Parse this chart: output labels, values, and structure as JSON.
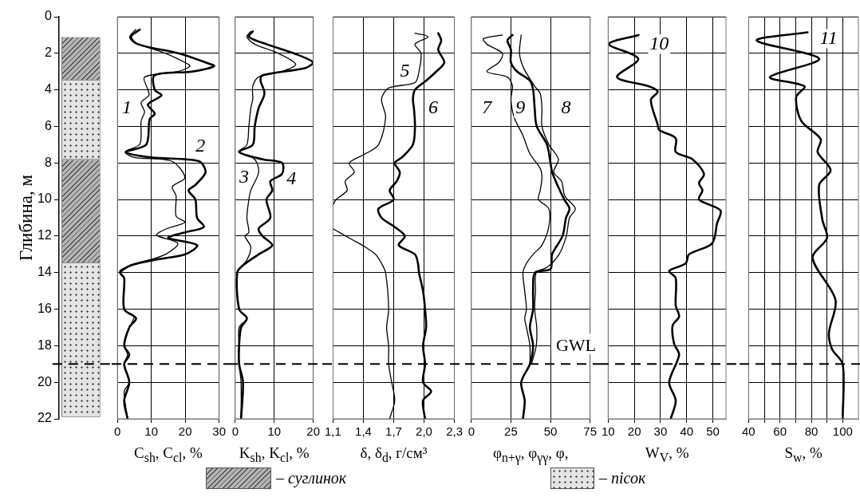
{
  "chart_data": [
    {
      "type": "bar",
      "ylabel": "Глибина, м",
      "ylim": [
        22,
        0
      ],
      "yticks": [
        0,
        2,
        4,
        6,
        8,
        10,
        12,
        14,
        16,
        18,
        20,
        22
      ],
      "tick_labels": "y",
      "legend": "bottom",
      "categories": [
        null
      ],
      "series": [
        {
          "name": "– суглинок",
          "color": "#b4b4b4",
          "base": [
            1.1
          ],
          "values": [
            2.4
          ]
        },
        {
          "name": "– пісок",
          "color": "#e4e4e4",
          "base": [
            3.5
          ],
          "values": [
            4.3
          ]
        },
        {
          "color": "#b4b4b4",
          "base": [
            7.8
          ],
          "values": [
            5.7
          ]
        },
        {
          "color": "#e4e4e4",
          "base": [
            13.5
          ],
          "values": [
            8.4
          ]
        }
      ],
      "ref_lines": [
        {
          "axis": "y",
          "value": 19,
          "line_style": "dashed",
          "color": "#000000"
        }
      ]
    },
    {
      "type": "line",
      "xlabel": "C$_{sh}$, C$_{cl}$, %",
      "xlim": [
        0,
        30
      ],
      "xticks": [
        0,
        10,
        20,
        30
      ],
      "ylim": [
        22,
        0
      ],
      "yticks": [
        0,
        2,
        4,
        6,
        8,
        10,
        12,
        14,
        16,
        18,
        20,
        22
      ],
      "tick_labels": "x",
      "grid": true,
      "series": [
        {
          "color": "#000000",
          "x": [
            5.4,
            3.6,
            4.9,
            14.2,
            19.9,
            21.4,
            17.8,
            8.0,
            9.0,
            9.3,
            7.0,
            8.0,
            7.0,
            7.0,
            6.5,
            2.3,
            5.0,
            16,
            19.9,
            16.2,
            17.3,
            17.3,
            19.9,
            14.5,
            11.6,
            17.8,
            14.2,
            6.0,
            0.7,
            2.0,
            2.0,
            4.9,
            3.5,
            2.0,
            3.0,
            2.0,
            3.5,
            2.0,
            3.0
          ],
          "values": [
            0.7,
            1.1,
            1.4,
            2.0,
            2.5,
            2.7,
            3.0,
            3.3,
            4.0,
            4.3,
            4.7,
            5.2,
            5.7,
            6.5,
            7.0,
            7.4,
            7.7,
            7.9,
            8.8,
            9.3,
            9.8,
            10.9,
            11.25,
            11.6,
            11.95,
            12.4,
            13.0,
            13.5,
            13.9,
            14.3,
            16.0,
            16.4,
            17.0,
            18.0,
            18.5,
            19.0,
            20.0,
            20.5,
            22.0
          ]
        },
        {
          "color": "#000000",
          "x": [
            6.6,
            4,
            6,
            18,
            26,
            28.5,
            22,
            11,
            11,
            13,
            9,
            11,
            9.5,
            8.5,
            2.5,
            10,
            24,
            26,
            23,
            21,
            23,
            23.5,
            25.5,
            20,
            15,
            23.5,
            20,
            11,
            4,
            0.8,
            2,
            2,
            5.5,
            3.5,
            2,
            3.5,
            2,
            3.5,
            2,
            3
          ],
          "values": [
            0.7,
            1.1,
            1.5,
            2.0,
            2.5,
            2.7,
            3.0,
            3.2,
            4.0,
            4.3,
            4.8,
            5.3,
            5.6,
            7.0,
            7.4,
            7.7,
            7.9,
            8.5,
            9.2,
            9.5,
            10.0,
            11.0,
            11.5,
            11.8,
            12.1,
            12.5,
            13.0,
            13.3,
            13.6,
            14.0,
            14.3,
            16.0,
            16.5,
            17.0,
            18.0,
            18.5,
            19.0,
            20.0,
            21.0,
            22.0
          ]
        }
      ],
      "annotations": [
        {
          "text": "1",
          "x": 2.8,
          "y": 5.0
        },
        {
          "text": "2",
          "x": 24.5,
          "y": 7.1
        }
      ],
      "ref_lines": [
        {
          "axis": "y",
          "value": 19,
          "line_style": "dashed",
          "color": "#000000"
        }
      ]
    },
    {
      "type": "line",
      "xlabel": "K$_{sh}$, K$_{cl}$, %",
      "xlim": [
        0,
        20
      ],
      "xticks": [
        0,
        10,
        20
      ],
      "ylim": [
        22,
        0
      ],
      "yticks": [
        0,
        2,
        4,
        6,
        8,
        10,
        12,
        14,
        16,
        18,
        20,
        22
      ],
      "tick_labels": "x",
      "grid": true,
      "series": [
        {
          "color": "#000000",
          "x": [
            4,
            3,
            5,
            11,
            15.5,
            12,
            6,
            4.5,
            4.5,
            4,
            3.5,
            3,
            1,
            5,
            6,
            4,
            3.5,
            3,
            3.5,
            2.5,
            4,
            3,
            0.5,
            1,
            3,
            1,
            1,
            1,
            1.5,
            1.5
          ],
          "values": [
            0.8,
            1.1,
            1.5,
            2.0,
            2.6,
            3.0,
            3.3,
            3.8,
            4.5,
            5.0,
            6.0,
            7.0,
            7.4,
            7.8,
            8.5,
            9.5,
            10.0,
            11.0,
            11.8,
            12.0,
            12.6,
            13.3,
            14.0,
            16.0,
            16.5,
            17.0,
            18.0,
            19.0,
            20.0,
            22.0
          ]
        },
        {
          "color": "#000000",
          "x": [
            4.5,
            3.5,
            8,
            15,
            20,
            18,
            7,
            6.5,
            7.5,
            6,
            5,
            4.5,
            1,
            7,
            12,
            12,
            9,
            9.5,
            8,
            9,
            6,
            7,
            9.5,
            6,
            2,
            0.5,
            1,
            3,
            1.5,
            1,
            1,
            2,
            1.5
          ],
          "values": [
            0.8,
            1.1,
            1.5,
            2.0,
            2.5,
            2.8,
            3.2,
            3.5,
            4.2,
            5.0,
            6.0,
            7.0,
            7.4,
            7.8,
            8.0,
            8.6,
            9.0,
            9.5,
            10.0,
            11.0,
            11.6,
            12.0,
            12.5,
            13.0,
            13.6,
            14.0,
            16.0,
            16.5,
            17.0,
            18.0,
            19.0,
            20.0,
            22.0
          ]
        }
      ],
      "annotations": [
        {
          "text": "3",
          "x": 2.3,
          "y": 8.8
        },
        {
          "text": "4",
          "x": 14.4,
          "y": 8.9
        }
      ],
      "ref_lines": [
        {
          "axis": "y",
          "value": 19,
          "line_style": "dashed",
          "color": "#000000"
        }
      ]
    },
    {
      "type": "line",
      "xlabel": "δ, δ$_{d}$, г/см³",
      "xlim": [
        1.1,
        2.3
      ],
      "xticks": [
        {
          "value": 1.1,
          "label": "1,1"
        },
        {
          "value": 1.4,
          "label": "1,4"
        },
        {
          "value": 1.7,
          "label": "1,7"
        },
        {
          "value": 2.0,
          "label": "2,0"
        },
        {
          "value": 2.3,
          "label": "2,3"
        }
      ],
      "ylim": [
        22,
        0
      ],
      "yticks": [
        0,
        2,
        4,
        6,
        8,
        10,
        12,
        14,
        16,
        18,
        20,
        22
      ],
      "tick_labels": "x",
      "grid": true,
      "series": [
        {
          "color": "#000000",
          "x": [
            1.91,
            2.04,
            1.91,
            1.97,
            1.95,
            1.91,
            1.65,
            1.58,
            1.62,
            1.55,
            1.42,
            1.26,
            1.31,
            1.22,
            1.24,
            1.13,
            1.1,
            null,
            1.1,
            1.29,
            1.39,
            1.52,
            1.58,
            1.62,
            1.65,
            1.63,
            1.65,
            1.65,
            1.68,
            1.71,
            1.66
          ],
          "values": [
            0.9,
            1.1,
            1.5,
            2.0,
            3.0,
            3.6,
            3.9,
            4.5,
            5.5,
            7.0,
            7.5,
            8.0,
            8.5,
            9.0,
            9.5,
            10.0,
            10.3,
            null,
            11.6,
            12.2,
            12.5,
            13.0,
            13.5,
            14.0,
            16.0,
            17.0,
            18.0,
            19.0,
            20.0,
            21.0,
            22.0
          ]
        },
        {
          "color": "#000000",
          "x": [
            2.14,
            2.17,
            2.14,
            2.2,
            2.12,
            2.02,
            1.91,
            1.89,
            1.9,
            1.91,
            1.89,
            1.78,
            1.71,
            1.76,
            1.73,
            1.66,
            1.7,
            1.55,
            1.58,
            1.71,
            1.81,
            1.75,
            1.91,
            1.94,
            1.95,
            1.99,
            2.01,
            2.02,
            1.99,
            2.01,
            1.99,
            2.07,
            1.99,
            2.01
          ],
          "values": [
            0.9,
            1.3,
            1.8,
            2.5,
            3.0,
            3.5,
            4.0,
            4.5,
            5.0,
            6.0,
            7.0,
            7.7,
            8.0,
            8.5,
            9.0,
            9.5,
            10.0,
            10.5,
            11.0,
            11.5,
            12.0,
            12.5,
            13.0,
            13.5,
            14.0,
            15.0,
            16.0,
            17.0,
            18.0,
            19.0,
            20.0,
            20.5,
            21.0,
            22.0
          ]
        }
      ],
      "annotations": [
        {
          "text": "5",
          "x": 1.81,
          "y": 3.0
        },
        {
          "text": "6",
          "x": 2.09,
          "y": 5.0
        }
      ],
      "ref_lines": [
        {
          "axis": "y",
          "value": 19,
          "line_style": "dashed",
          "color": "#000000"
        }
      ]
    },
    {
      "type": "line",
      "xlabel": "φ$_{n+γ}$, φ$_{γγ}$, φ,",
      "xlim": [
        0,
        75
      ],
      "xticks": [
        0,
        25,
        50,
        75
      ],
      "ylim": [
        22,
        0
      ],
      "yticks": [
        0,
        2,
        4,
        6,
        8,
        10,
        12,
        14,
        16,
        18,
        20,
        22
      ],
      "tick_labels": "x",
      "grid": true,
      "series": [
        {
          "color": "#000000",
          "x": [
            19.6,
            7.6,
            9.8,
            19.6,
            17.4,
            9.8,
            22.8,
            26,
            25,
            27,
            32.6,
            37,
            43.5,
            44.6,
            43.5,
            42.4,
            48.9,
            48.9,
            44.6,
            39,
            34.8,
            32.6,
            33.7,
            34.8,
            33.7,
            34.8,
            37,
            37
          ],
          "values": [
            1.0,
            1.2,
            1.5,
            2.0,
            2.5,
            3.0,
            3.3,
            3.8,
            4.5,
            5.5,
            6.5,
            7.5,
            8.3,
            8.8,
            9.5,
            10.0,
            10.5,
            11.5,
            12.5,
            13.0,
            13.5,
            14.0,
            15.0,
            16.0,
            16.5,
            17.0,
            18.0,
            19.0
          ]
        },
        {
          "color": "#000000",
          "x": [
            31.5,
            30.4,
            33,
            40,
            43.5,
            44.6,
            44.6,
            49,
            55,
            52,
            57,
            59,
            65.7,
            62,
            60,
            55.4,
            48,
            41,
            40.5,
            40,
            41.3,
            41,
            38
          ],
          "values": [
            1.0,
            2.0,
            2.8,
            3.8,
            4.2,
            5.0,
            6.0,
            7.0,
            7.8,
            8.5,
            9.0,
            9.8,
            10.5,
            11.0,
            12.0,
            13.0,
            13.7,
            14.0,
            15.0,
            16.0,
            17.0,
            18.0,
            19.0
          ]
        },
        {
          "color": "#000000",
          "x": [
            26,
            22.8,
            25,
            25,
            29,
            37,
            39,
            40,
            41.3,
            47.8,
            50,
            51,
            54.3,
            58.7,
            62,
            59.8,
            57.6,
            51,
            50,
            40.2,
            39,
            39,
            37,
            39,
            37,
            31.5,
            33.7,
            32.6
          ],
          "values": [
            1.0,
            1.3,
            1.8,
            2.5,
            3.0,
            3.5,
            4.0,
            5.0,
            6.0,
            7.0,
            8.0,
            8.5,
            9.2,
            10.0,
            10.5,
            11.0,
            12.0,
            13.0,
            13.8,
            14.0,
            15.0,
            16.0,
            17.0,
            18.0,
            19.0,
            20.0,
            21.0,
            22.0
          ]
        }
      ],
      "annotations": [
        {
          "text": "7",
          "x": 9.8,
          "y": 5.0
        },
        {
          "text": "9",
          "x": 30.9,
          "y": 5.0
        },
        {
          "text": "8",
          "x": 59.8,
          "y": 5.0
        }
      ],
      "ref_lines": [
        {
          "axis": "y",
          "value": 19,
          "label": "GWL",
          "line_style": "dashed",
          "color": "#000000"
        }
      ]
    },
    {
      "type": "line",
      "xlabel": "W$_{V}$, %",
      "xlim": [
        10,
        55
      ],
      "xticks": [
        10,
        20,
        30,
        40,
        50
      ],
      "ylim": [
        22,
        0
      ],
      "yticks": [
        0,
        2,
        4,
        6,
        8,
        10,
        12,
        14,
        16,
        18,
        20,
        22
      ],
      "tick_labels": "x",
      "grid": true,
      "series": [
        {
          "color": "#000000",
          "x": [
            21.6,
            10.3,
            21.5,
            13.4,
            25.4,
            28.9,
            26.3,
            28.9,
            29.5,
            35.8,
            35.8,
            42.2,
            46.6,
            44.7,
            46,
            44.7,
            52.9,
            51.6,
            49.7,
            40.9,
            39.6,
            33.3,
            35.8,
            35.8,
            37.1,
            34.6,
            35.2,
            37.1,
            33.3,
            35.8,
            33.9
          ],
          "values": [
            1.0,
            1.5,
            2.3,
            3.3,
            3.8,
            4.1,
            4.55,
            5.9,
            6.2,
            6.65,
            7.4,
            7.8,
            8.6,
            9.1,
            9.5,
            10.0,
            10.6,
            11.3,
            12.4,
            13.0,
            13.5,
            13.9,
            14.3,
            15.8,
            16.4,
            16.9,
            17.9,
            18.5,
            20.0,
            21.0,
            22.0
          ]
        }
      ],
      "annotations": [
        {
          "text": "10",
          "x": 29.5,
          "y": 1.5
        }
      ],
      "ref_lines": [
        {
          "axis": "y",
          "value": 19,
          "line_style": "dashed",
          "color": "#000000"
        }
      ]
    },
    {
      "type": "line",
      "xlabel": "S$_{w}$, %",
      "xlim": [
        40,
        110
      ],
      "xticks": [
        40,
        {
          "value": 50,
          "label": null
        },
        60,
        {
          "value": 70,
          "label": null
        },
        80,
        {
          "value": 90,
          "label": null
        },
        100
      ],
      "ylim": [
        22,
        0
      ],
      "yticks": [
        0,
        2,
        4,
        6,
        8,
        10,
        12,
        14,
        16,
        18,
        20,
        22
      ],
      "tick_labels": "x",
      "grid": true,
      "series": [
        {
          "color": "#000000",
          "x": [
            77.6,
            45.2,
            85,
            53.6,
            75.6,
            70.3,
            73.6,
            86,
            84,
            92.3,
            85,
            87,
            90,
            80.8,
            95.4,
            91.2,
            93.3,
            100,
            100
          ],
          "values": [
            0.85,
            1.3,
            2.3,
            3.3,
            3.8,
            4.4,
            5.7,
            6.7,
            7.4,
            8.4,
            9.2,
            11.1,
            12.1,
            13.2,
            15.5,
            17.3,
            18.2,
            19.0,
            22.0
          ]
        }
      ],
      "annotations": [
        {
          "text": "11",
          "x": 91,
          "y": 1.2
        }
      ],
      "ref_lines": [
        {
          "axis": "y",
          "value": 19,
          "line_style": "dashed",
          "color": "#000000"
        }
      ]
    }
  ]
}
